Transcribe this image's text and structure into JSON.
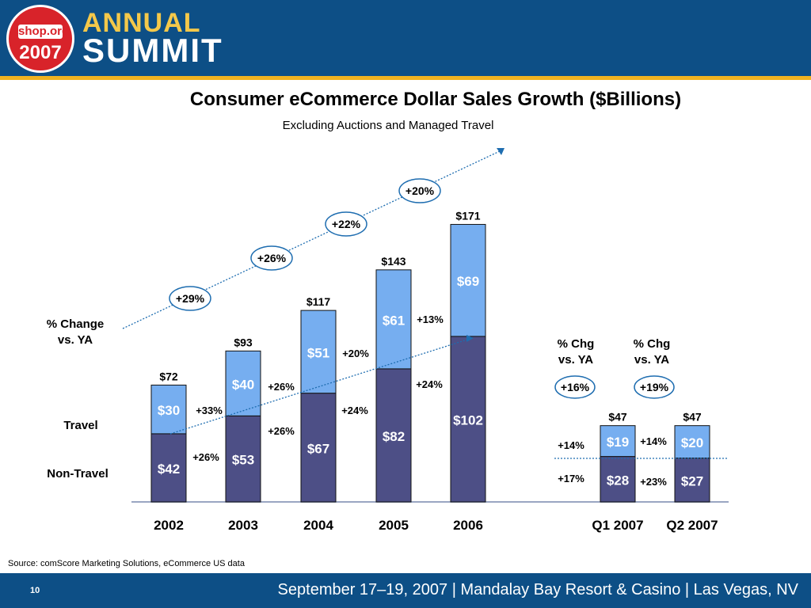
{
  "brand": {
    "logo_top": "shop.org",
    "logo_year": "2007",
    "line1": "ANNUAL",
    "line2": "SUMMIT"
  },
  "slide": {
    "title": "Consumer eCommerce Dollar Sales Growth ($Billions)",
    "subtitle": "Excluding Auctions and Managed Travel",
    "source": "Source:  comScore Marketing Solutions, eCommerce US data",
    "page_number": "10",
    "event": "September 17–19, 2007  |  Mandalay Bay Resort & Casino  |  Las Vegas, NV"
  },
  "colors": {
    "header": "#0d4f86",
    "stripe": "#f0b320",
    "travel": "#76aef0",
    "non_travel": "#4d4f86",
    "trend": "#1e6db0"
  },
  "chart_data": {
    "type": "bar",
    "stacked": true,
    "categories": [
      "2002",
      "2003",
      "2004",
      "2005",
      "2006",
      "Q1 2007",
      "Q2 2007"
    ],
    "series": [
      {
        "name": "Non-Travel",
        "values": [
          42,
          53,
          67,
          82,
          102,
          28,
          27
        ],
        "labels": [
          "$42",
          "$53",
          "$67",
          "$82",
          "$102",
          "$28",
          "$27"
        ]
      },
      {
        "name": "Travel",
        "values": [
          30,
          40,
          51,
          61,
          69,
          19,
          20
        ],
        "labels": [
          "$30",
          "$40",
          "$51",
          "$61",
          "$69",
          "$19",
          "$20"
        ]
      }
    ],
    "totals": [
      "$72",
      "$93",
      "$117",
      "$143",
      "$171",
      "$47",
      "$47"
    ],
    "row_labels": {
      "pct_change": "% Change\nvs. YA",
      "travel": "Travel",
      "non_travel": "Non-Travel"
    },
    "total_growth": [
      "+29%",
      "+26%",
      "+22%",
      "+20%"
    ],
    "travel_growth": [
      "+33%",
      "+26%",
      "+20%",
      "+13%"
    ],
    "non_travel_growth": [
      "+26%",
      "+26%",
      "+24%",
      "+24%"
    ],
    "quarterly": {
      "headers": [
        "% Chg\nvs. YA",
        "% Chg\nvs. YA"
      ],
      "total_growth": [
        "+16%",
        "+19%"
      ],
      "travel_growth": [
        "+14%",
        "+14%"
      ],
      "non_travel_growth": [
        "+17%",
        "+23%"
      ]
    }
  }
}
